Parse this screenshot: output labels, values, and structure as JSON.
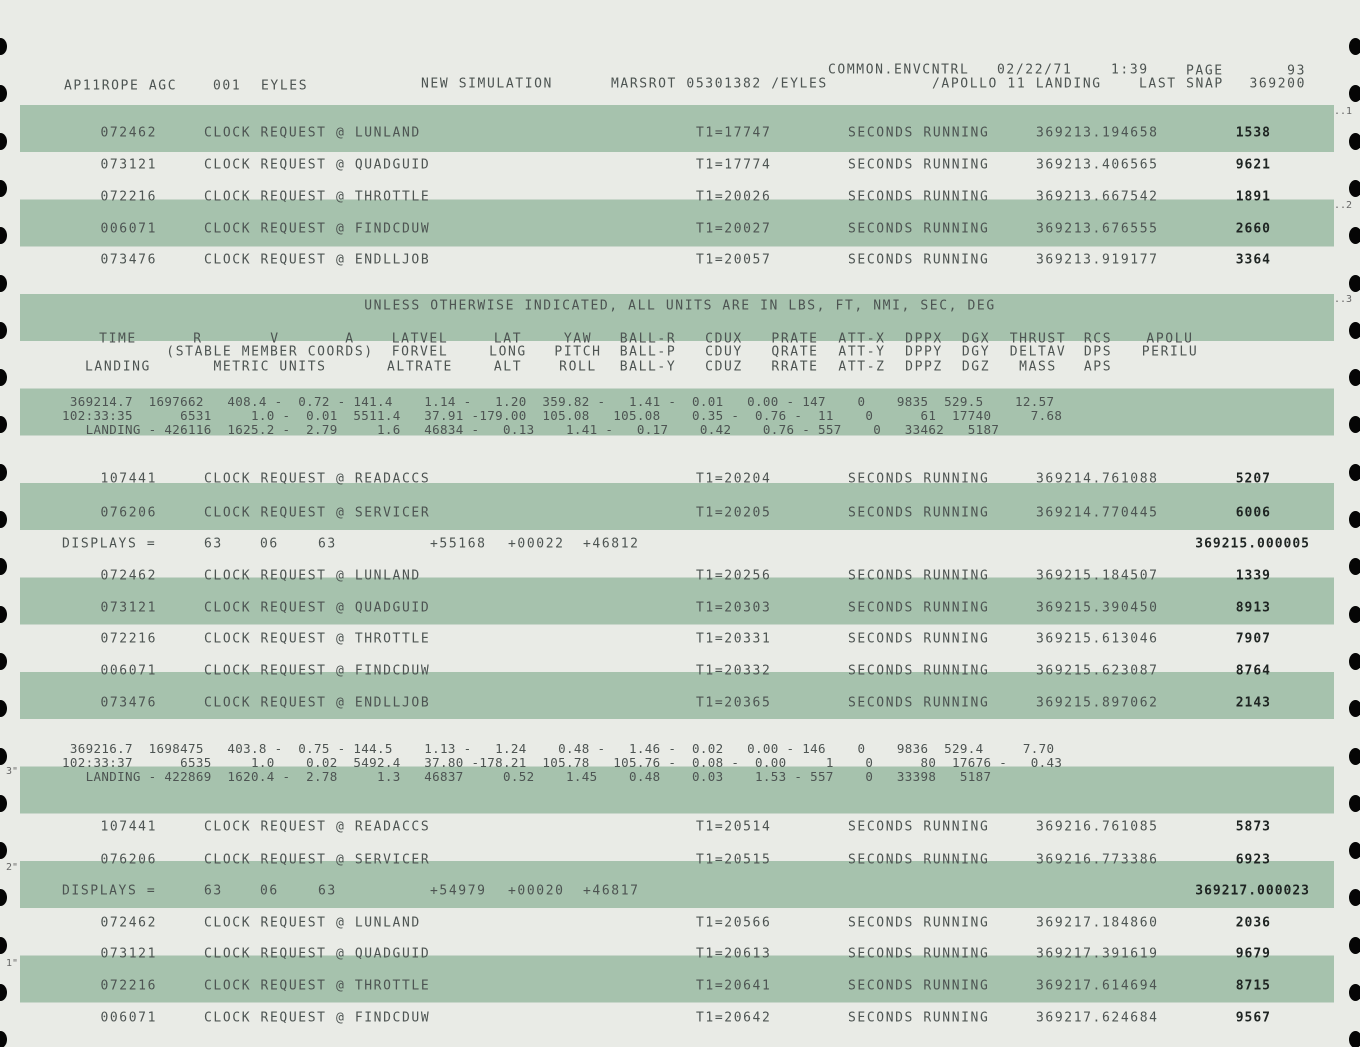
{
  "header": {
    "job": "AP11ROPE AGC",
    "id": "001",
    "user": "EYLES",
    "mode": "NEW SIMULATION",
    "marsrot": "MARSROT 05301382 /EYLES",
    "common": "COMMON.ENVCNTRL",
    "date": "02/22/71",
    "time": "1:39",
    "page_label": "PAGE",
    "page": "93",
    "title": "/APOLLO 11 LANDING",
    "snap_label": "LAST SNAP",
    "snap": "369200"
  },
  "lines": [
    {
      "addr": "072462",
      "request": "CLOCK REQUEST @ LUNLAND",
      "t1": "T1=17747",
      "status": "SECONDS RUNNING",
      "time": "369213.194658",
      "count": "1538"
    },
    {
      "addr": "073121",
      "request": "CLOCK REQUEST @ QUADGUID",
      "t1": "T1=17774",
      "status": "SECONDS RUNNING",
      "time": "369213.406565",
      "count": "9621"
    },
    {
      "addr": "072216",
      "request": "CLOCK REQUEST @ THROTTLE",
      "t1": "T1=20026",
      "status": "SECONDS RUNNING",
      "time": "369213.667542",
      "count": "1891"
    },
    {
      "addr": "006071",
      "request": "CLOCK REQUEST @ FINDCDUW",
      "t1": "T1=20027",
      "status": "SECONDS RUNNING",
      "time": "369213.676555",
      "count": "2660"
    },
    {
      "addr": "073476",
      "request": "CLOCK REQUEST @ ENDLLJOB",
      "t1": "T1=20057",
      "status": "SECONDS RUNNING",
      "time": "369213.919177",
      "count": "3364"
    },
    {
      "heading": "UNLESS OTHERWISE INDICATED, ALL UNITS ARE IN LBS, FT, NMI, SEC, DEG",
      "columns": [
        {
          "top": "TIME",
          "bottom": "LANDING"
        },
        {
          "top": "R"
        },
        {
          "mid": "(STABLE MEMBER COORDS)",
          "bottom": "METRIC UNITS"
        },
        {
          "top": "V"
        },
        {
          "top": "A"
        },
        {
          "top": "LATVEL",
          "mid": "FORVEL",
          "bottom": "ALTRATE"
        },
        {
          "top": "LAT",
          "mid": "LONG",
          "bottom": "ALT"
        },
        {
          "top": "YAW",
          "mid": "PITCH",
          "bottom": "ROLL"
        },
        {
          "top": "BALL-R",
          "mid": "BALL-P",
          "bottom": "BALL-Y"
        },
        {
          "top": "CDUX",
          "mid": "CDUY",
          "bottom": "CDUZ"
        },
        {
          "top": "PRATE",
          "mid": "QRATE",
          "bottom": "RRATE"
        },
        {
          "top": "ATT-X",
          "mid": "ATT-Y",
          "bottom": "ATT-Z"
        },
        {
          "top": "DPPX",
          "mid": "DPPY",
          "bottom": "DPPZ"
        },
        {
          "top": "DGX",
          "mid": "DGY",
          "bottom": "DGZ"
        },
        {
          "top": "THRUST",
          "mid": "DELTAV",
          "bottom": "MASS"
        },
        {
          "top": "RCS",
          "mid": "DPS",
          "bottom": "APS"
        },
        {
          "top": "APOLU",
          "mid": "PERILU"
        }
      ]
    },
    {
      "block": [
        " 369214.7  1697662   408.4 -  0.72 - 141.4    1.14 -   1.20  359.82 -   1.41 -  0.01   0.00 - 147    0    9835  529.5    12.57",
        "102:33:35      6531     1.0 -  0.01  5511.4   37.91 -179.00  105.08   105.08    0.35 -  0.76 -  11    0      61  17740     7.68",
        "   LANDING - 426116  1625.2 -  2.79     1.6   46834 -   0.13    1.41 -   0.17    0.42    0.76 - 557    0   33462   5187"
      ]
    },
    {
      "addr": "107441",
      "request": "CLOCK REQUEST @ READACCS",
      "t1": "T1=20204",
      "status": "SECONDS RUNNING",
      "time": "369214.761088",
      "count": "5207"
    },
    {
      "addr": "076206",
      "request": "CLOCK REQUEST @ SERVICER",
      "t1": "T1=20205",
      "status": "SECONDS RUNNING",
      "time": "369214.770445",
      "count": "6006"
    },
    {
      "label": "DISPLAYS =",
      "fields": [
        "63",
        "06",
        "63",
        "+55168",
        "+00022",
        "+46812"
      ],
      "time": "369215.000005"
    },
    {
      "addr": "072462",
      "request": "CLOCK REQUEST @ LUNLAND",
      "t1": "T1=20256",
      "status": "SECONDS RUNNING",
      "time": "369215.184507",
      "count": "1339"
    },
    {
      "addr": "073121",
      "request": "CLOCK REQUEST @ QUADGUID",
      "t1": "T1=20303",
      "status": "SECONDS RUNNING",
      "time": "369215.390450",
      "count": "8913"
    },
    {
      "addr": "072216",
      "request": "CLOCK REQUEST @ THROTTLE",
      "t1": "T1=20331",
      "status": "SECONDS RUNNING",
      "time": "369215.613046",
      "count": "7907"
    },
    {
      "addr": "006071",
      "request": "CLOCK REQUEST @ FINDCDUW",
      "t1": "T1=20332",
      "status": "SECONDS RUNNING",
      "time": "369215.623087",
      "count": "8764"
    },
    {
      "addr": "073476",
      "request": "CLOCK REQUEST @ ENDLLJOB",
      "t1": "T1=20365",
      "status": "SECONDS RUNNING",
      "time": "369215.897062",
      "count": "2143"
    },
    {
      "block": [
        " 369216.7  1698475   403.8 -  0.75 - 144.5    1.13 -   1.24    0.48 -   1.46 -  0.02   0.00 - 146    0    9836  529.4     7.70",
        "102:33:37      6535     1.0    0.02  5492.4   37.80 -178.21  105.78   105.76 -  0.08 -  0.00     1    0      80  17676 -   0.43",
        "   LANDING - 422869  1620.4 -  2.78     1.3   46837     0.52    1.45    0.48    0.03    1.53 - 557    0   33398   5187"
      ]
    },
    {
      "addr": "107441",
      "request": "CLOCK REQUEST @ READACCS",
      "t1": "T1=20514",
      "status": "SECONDS RUNNING",
      "time": "369216.761085",
      "count": "5873"
    },
    {
      "addr": "076206",
      "request": "CLOCK REQUEST @ SERVICER",
      "t1": "T1=20515",
      "status": "SECONDS RUNNING",
      "time": "369216.773386",
      "count": "6923"
    },
    {
      "label": "DISPLAYS =",
      "fields": [
        "63",
        "06",
        "63",
        "+54979",
        "+00020",
        "+46817"
      ],
      "time": "369217.000023"
    },
    {
      "addr": "072462",
      "request": "CLOCK REQUEST @ LUNLAND",
      "t1": "T1=20566",
      "status": "SECONDS RUNNING",
      "time": "369217.184860",
      "count": "2036"
    },
    {
      "addr": "073121",
      "request": "CLOCK REQUEST @ QUADGUID",
      "t1": "T1=20613",
      "status": "SECONDS RUNNING",
      "time": "369217.391619",
      "count": "9679"
    },
    {
      "addr": "072216",
      "request": "CLOCK REQUEST @ THROTTLE",
      "t1": "T1=20641",
      "status": "SECONDS RUNNING",
      "time": "369217.614694",
      "count": "8715"
    },
    {
      "addr": "006071",
      "request": "CLOCK REQUEST @ FINDCDUW",
      "t1": "T1=20642",
      "status": "SECONDS RUNNING",
      "time": "369217.624684",
      "count": "9567"
    }
  ],
  "margin": {
    "left": [
      "3\"",
      "2\"",
      "1\""
    ],
    "right": [
      "..1",
      "..2",
      "..3"
    ]
  }
}
